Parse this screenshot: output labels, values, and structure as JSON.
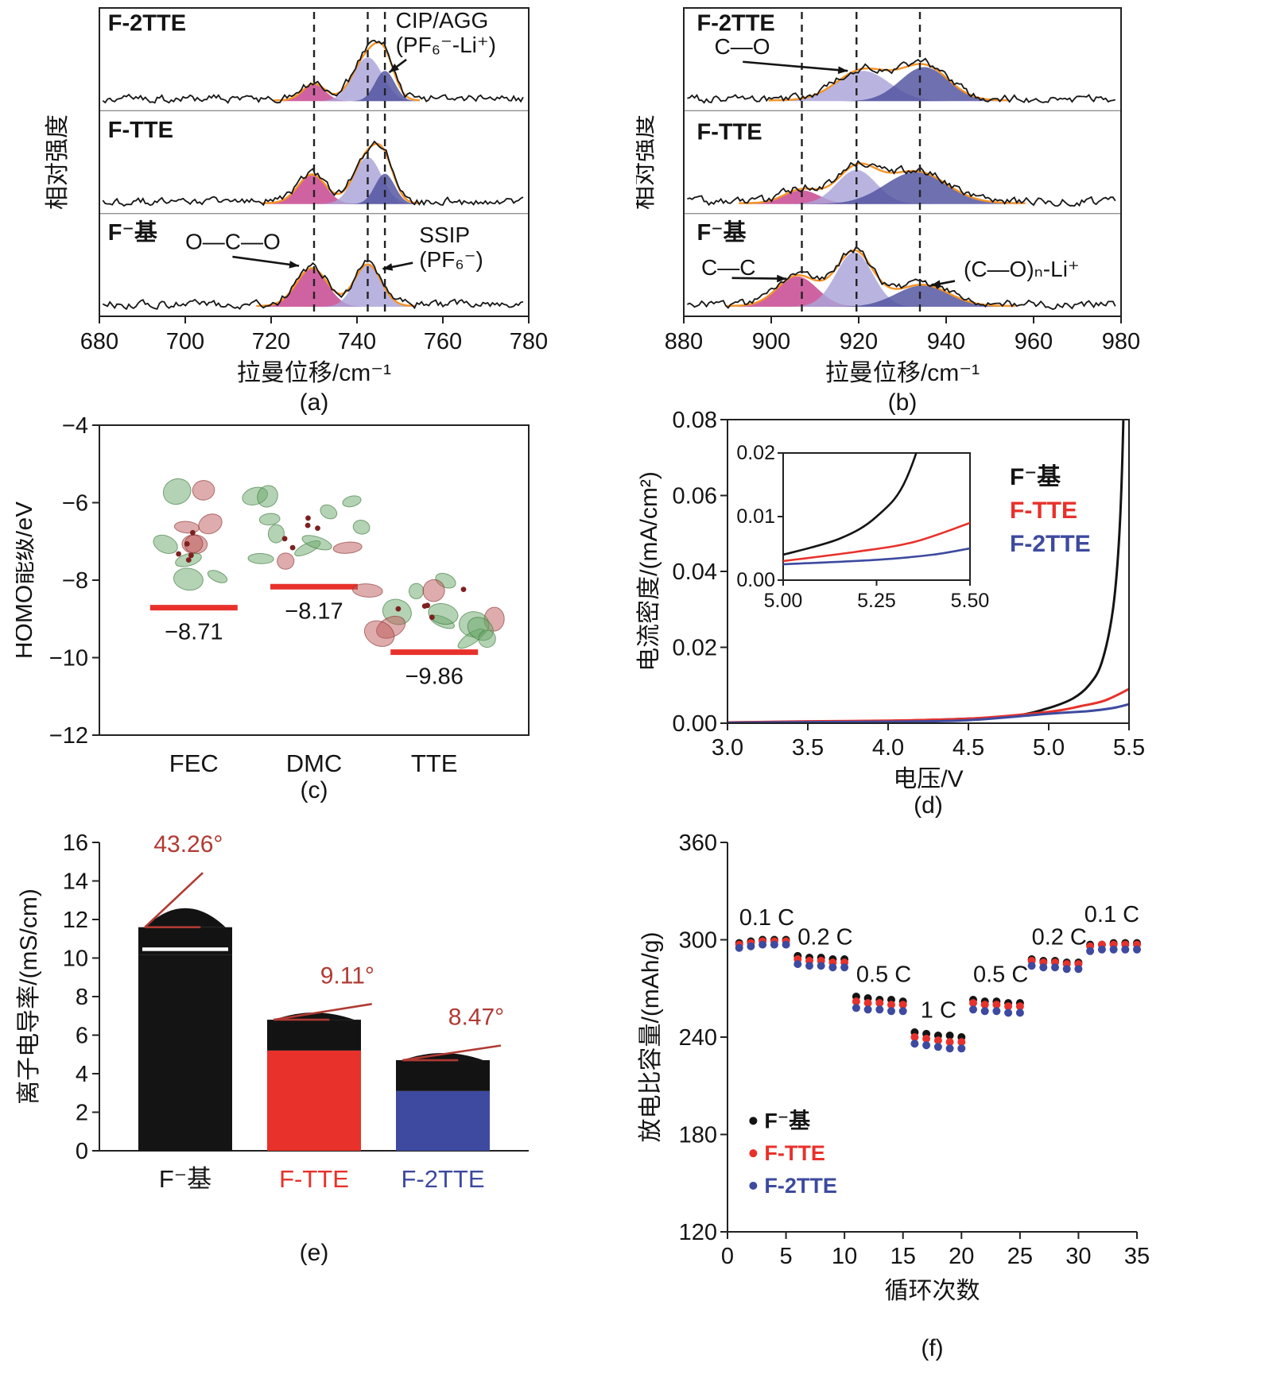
{
  "figure": {
    "captions": {
      "a": "(a)",
      "b": "(b)",
      "c": "(c)",
      "d": "(d)",
      "e": "(e)",
      "f": "(f)"
    }
  },
  "colors": {
    "black_series": "#141414",
    "red_series": "#e8312b",
    "blue_series": "#3d4a9f",
    "annotation_red": "#b03a33",
    "fit_orange": "#f59324",
    "peak_pink": "#c4418c",
    "peak_light_purple": "#aaa4d8",
    "peak_dark_purple": "#4f519f",
    "homo_level_red": "#e8312b",
    "axis": "#1a1a1a"
  },
  "chart_data": [
    {
      "id": "a",
      "type": "line",
      "kind": "raman",
      "xlabel": "拉曼位移/cm⁻¹",
      "ylabel": "相对强度",
      "xlim": [
        680,
        780
      ],
      "xticks": [
        680,
        700,
        720,
        740,
        760,
        780
      ],
      "xtick_labels": [
        "680",
        "700",
        "720",
        "740",
        "760",
        "780"
      ],
      "dashed_lines": [
        730,
        742.5,
        746.5
      ],
      "label_x": 682,
      "traces": [
        {
          "name": "F-2TTE",
          "label_ty": 0.93,
          "peaks": [
            {
              "center": 730,
              "sigma": 2.6,
              "height": 0.22,
              "color": "peak_pink"
            },
            {
              "center": 742.5,
              "sigma": 3.4,
              "height": 0.58,
              "color": "peak_light_purple"
            },
            {
              "center": 746.5,
              "sigma": 2.3,
              "height": 0.4,
              "color": "peak_dark_purple"
            }
          ]
        },
        {
          "name": "F-TTE",
          "label_ty": 0.88,
          "peaks": [
            {
              "center": 729.5,
              "sigma": 3.2,
              "height": 0.38,
              "color": "peak_pink"
            },
            {
              "center": 742.5,
              "sigma": 3.2,
              "height": 0.62,
              "color": "peak_light_purple"
            },
            {
              "center": 746.5,
              "sigma": 2.3,
              "height": 0.4,
              "color": "peak_dark_purple"
            }
          ]
        },
        {
          "name": "F⁻基",
          "label_ty": 0.88,
          "peaks": [
            {
              "center": 729.5,
              "sigma": 3.6,
              "height": 0.5,
              "color": "peak_pink"
            },
            {
              "center": 742.5,
              "sigma": 3.1,
              "height": 0.55,
              "color": "peak_light_purple"
            }
          ]
        }
      ],
      "annotations": [
        {
          "lines": [
            "CIP/AGG",
            "(PF₆⁻-Li⁺)"
          ],
          "band": 0,
          "tx": 749,
          "ty": 0.97,
          "arrow": {
            "x1": 751.5,
            "y1": 0.55,
            "x2": 747.5,
            "y2": 0.38
          }
        },
        {
          "lines": [
            "O—C—O"
          ],
          "band": 2,
          "tx": 700,
          "ty": 0.76,
          "arrow": {
            "x1": 711,
            "y1": 0.66,
            "x2": 726.5,
            "y2": 0.54
          }
        },
        {
          "lines": [
            "SSIP",
            "(PF₆⁻)"
          ],
          "band": 2,
          "tx": 754.5,
          "ty": 0.85,
          "arrow": {
            "x1": 753,
            "y1": 0.58,
            "x2": 746,
            "y2": 0.5
          }
        }
      ]
    },
    {
      "id": "b",
      "type": "line",
      "kind": "raman",
      "xlabel": "拉曼位移/cm⁻¹",
      "ylabel": "相对强度",
      "xlim": [
        880,
        980
      ],
      "xticks": [
        880,
        900,
        920,
        940,
        960,
        980
      ],
      "xtick_labels": [
        "880",
        "900",
        "920",
        "940",
        "960",
        "980"
      ],
      "dashed_lines": [
        907,
        919.5,
        934
      ],
      "label_x": 883,
      "traces": [
        {
          "name": "F-2TTE",
          "label_ty": 0.93,
          "peaks": [
            {
              "center": 921,
              "sigma": 6,
              "height": 0.4,
              "color": "peak_light_purple"
            },
            {
              "center": 935,
              "sigma": 5.5,
              "height": 0.45,
              "color": "peak_dark_purple"
            }
          ]
        },
        {
          "name": "F-TTE",
          "label_ty": 0.85,
          "peaks": [
            {
              "center": 907,
              "sigma": 4,
              "height": 0.18,
              "color": "peak_pink"
            },
            {
              "center": 919.5,
              "sigma": 4.5,
              "height": 0.45,
              "color": "peak_light_purple"
            },
            {
              "center": 933,
              "sigma": 7,
              "height": 0.42,
              "color": "peak_dark_purple"
            }
          ]
        },
        {
          "name": "F⁻基",
          "label_ty": 0.88,
          "peaks": [
            {
              "center": 906,
              "sigma": 4.5,
              "height": 0.4,
              "color": "peak_pink"
            },
            {
              "center": 919,
              "sigma": 4.2,
              "height": 0.72,
              "color": "peak_light_purple"
            },
            {
              "center": 934.5,
              "sigma": 6,
              "height": 0.28,
              "color": "peak_dark_purple"
            }
          ]
        }
      ],
      "annotations": [
        {
          "lines": [
            "C—O"
          ],
          "band": 0,
          "tx": 887,
          "ty": 0.62,
          "arrow": {
            "x1": 893.5,
            "y1": 0.52,
            "x2": 917.5,
            "y2": 0.4
          }
        },
        {
          "lines": [
            "C—C"
          ],
          "band": 2,
          "tx": 884,
          "ty": 0.42,
          "arrow": {
            "x1": 891,
            "y1": 0.38,
            "x2": 903.5,
            "y2": 0.37
          }
        },
        {
          "lines": [
            "(C—O)ₙ-Li⁺"
          ],
          "band": 2,
          "tx": 944,
          "ty": 0.4,
          "arrow": {
            "x1": 942,
            "y1": 0.34,
            "x2": 936.5,
            "y2": 0.28
          }
        }
      ]
    },
    {
      "id": "c",
      "type": "scatter",
      "kind": "homo",
      "ylabel": "HOMO能级/eV",
      "ylim": [
        -12,
        -4
      ],
      "yticks": [
        -12,
        -10,
        -8,
        -6,
        -4
      ],
      "ytick_labels": [
        "−12",
        "−10",
        "−8",
        "−6",
        "−4"
      ],
      "categories": [
        "FEC",
        "DMC",
        "TTE"
      ],
      "values": [
        -8.71,
        -8.17,
        -9.86
      ],
      "value_labels": [
        "−8.71",
        "−8.17",
        "−9.86"
      ],
      "level_color": "homo_level_red",
      "orbital_icons": [
        "fec-orbital",
        "dmc-orbital",
        "tte-orbital"
      ]
    },
    {
      "id": "d",
      "type": "line",
      "kind": "lsv",
      "xlabel": "电压/V",
      "ylabel": "电流密度/(mA/cm²)",
      "xlim": [
        3.0,
        5.5
      ],
      "ylim": [
        0,
        0.08
      ],
      "xticks": [
        3.0,
        3.5,
        4.0,
        4.5,
        5.0,
        5.5
      ],
      "xtick_labels": [
        "3.0",
        "3.5",
        "4.0",
        "4.5",
        "5.0",
        "5.5"
      ],
      "yticks": [
        0,
        0.02,
        0.04,
        0.06,
        0.08
      ],
      "ytick_labels": [
        "0.00",
        "0.02",
        "0.04",
        "0.06",
        "0.08"
      ],
      "series": [
        {
          "name": "F⁻基",
          "color": "black_series",
          "points": [
            [
              3.0,
              0.0002
            ],
            [
              3.5,
              0.0004
            ],
            [
              4.0,
              0.0006
            ],
            [
              4.5,
              0.0012
            ],
            [
              4.8,
              0.002
            ],
            [
              5.0,
              0.004
            ],
            [
              5.15,
              0.0065
            ],
            [
              5.25,
              0.01
            ],
            [
              5.33,
              0.016
            ],
            [
              5.4,
              0.03
            ],
            [
              5.44,
              0.05
            ],
            [
              5.465,
              0.08
            ],
            [
              5.48,
              0.12
            ]
          ]
        },
        {
          "name": "F-TTE",
          "color": "red_series",
          "points": [
            [
              3.0,
              0.0002
            ],
            [
              3.5,
              0.0005
            ],
            [
              4.0,
              0.0007
            ],
            [
              4.5,
              0.0012
            ],
            [
              5.0,
              0.003
            ],
            [
              5.2,
              0.0045
            ],
            [
              5.35,
              0.006
            ],
            [
              5.5,
              0.009
            ]
          ]
        },
        {
          "name": "F-2TTE",
          "color": "blue_series",
          "points": [
            [
              3.0,
              0.0001
            ],
            [
              3.5,
              0.0003
            ],
            [
              4.0,
              0.0004
            ],
            [
              4.5,
              0.0008
            ],
            [
              5.0,
              0.0025
            ],
            [
              5.25,
              0.0032
            ],
            [
              5.4,
              0.004
            ],
            [
              5.5,
              0.005
            ]
          ]
        }
      ],
      "inset": {
        "xlim": [
          5.0,
          5.5
        ],
        "ylim": [
          0,
          0.02
        ],
        "xticks": [
          5.0,
          5.25,
          5.5
        ],
        "xtick_labels": [
          "5.00",
          "5.25",
          "5.50"
        ],
        "yticks": [
          0,
          0.01,
          0.02
        ],
        "ytick_labels": [
          "0.00",
          "0.01",
          "0.02"
        ]
      },
      "legend": [
        {
          "label": "F⁻基",
          "color": "black_series"
        },
        {
          "label": "F-TTE",
          "color": "red_series"
        },
        {
          "label": "F-2TTE",
          "color": "blue_series"
        }
      ]
    },
    {
      "id": "e",
      "type": "bar",
      "kind": "bars",
      "ylabel": "离子电导率/(mS/cm)",
      "ylim": [
        0,
        16
      ],
      "yticks": [
        0,
        2,
        4,
        6,
        8,
        10,
        12,
        14,
        16
      ],
      "ytick_labels": [
        "0",
        "2",
        "4",
        "6",
        "8",
        "10",
        "12",
        "14",
        "16"
      ],
      "categories": [
        "F⁻基",
        "F-TTE",
        "F-2TTE"
      ],
      "bar_colors": [
        "black_series",
        "red_series",
        "blue_series"
      ],
      "values_total": [
        11.6,
        6.8,
        4.7
      ],
      "colored_heights": [
        10.15,
        5.2,
        3.1
      ],
      "contact_angle_labels": [
        "43.26°",
        "9.11°",
        "8.47°"
      ],
      "contact_angles_deg": [
        43.26,
        9.11,
        8.47
      ]
    },
    {
      "id": "f",
      "type": "scatter",
      "kind": "rate",
      "xlabel": "循环次数",
      "ylabel": "放电比容量/(mAh/g)",
      "xlim": [
        0,
        35
      ],
      "ylim": [
        120,
        360
      ],
      "xticks": [
        0,
        5,
        10,
        15,
        20,
        25,
        30,
        35
      ],
      "xtick_labels": [
        "0",
        "5",
        "10",
        "15",
        "20",
        "25",
        "30",
        "35"
      ],
      "yticks": [
        120,
        180,
        240,
        300,
        360
      ],
      "ytick_labels": [
        "120",
        "180",
        "240",
        "300",
        "360"
      ],
      "rate_labels": [
        {
          "text": "0.1 C",
          "x": 1.0,
          "y": 309
        },
        {
          "text": "0.2 C",
          "x": 6.0,
          "y": 297
        },
        {
          "text": "0.5 C",
          "x": 11.0,
          "y": 274
        },
        {
          "text": "1 C",
          "x": 16.5,
          "y": 252
        },
        {
          "text": "0.5 C",
          "x": 21.0,
          "y": 274
        },
        {
          "text": "0.2 C",
          "x": 26.0,
          "y": 297
        },
        {
          "text": "0.1 C",
          "x": 30.5,
          "y": 311
        }
      ],
      "series": [
        {
          "name": "F⁻基",
          "color": "black_series",
          "values": [
            298,
            299,
            300,
            300,
            300,
            290,
            289,
            289,
            288,
            288,
            265,
            264,
            263,
            263,
            262,
            243,
            242,
            241,
            241,
            240,
            263,
            262,
            262,
            261,
            261,
            288,
            287,
            287,
            286,
            286,
            297,
            297,
            298,
            298,
            298
          ]
        },
        {
          "name": "F-TTE",
          "color": "red_series",
          "values": [
            297,
            298,
            299,
            299,
            299,
            288,
            287,
            287,
            286,
            286,
            262,
            261,
            261,
            260,
            260,
            240,
            239,
            238,
            237,
            237,
            261,
            260,
            260,
            259,
            259,
            287,
            286,
            286,
            285,
            285,
            296,
            297,
            297,
            297,
            297
          ]
        },
        {
          "name": "F-2TTE",
          "color": "blue_series",
          "values": [
            295,
            296,
            297,
            297,
            297,
            285,
            284,
            284,
            283,
            283,
            258,
            257,
            257,
            256,
            256,
            236,
            235,
            234,
            233,
            233,
            257,
            256,
            256,
            255,
            255,
            284,
            283,
            283,
            282,
            282,
            293,
            294,
            294,
            294,
            294
          ]
        }
      ],
      "legend": [
        {
          "label": "F⁻基",
          "color": "black_series",
          "x": 2.2,
          "y": 184
        },
        {
          "label": "F-TTE",
          "color": "red_series",
          "x": 2.2,
          "y": 164
        },
        {
          "label": "F-2TTE",
          "color": "blue_series",
          "x": 2.2,
          "y": 144
        }
      ]
    }
  ]
}
